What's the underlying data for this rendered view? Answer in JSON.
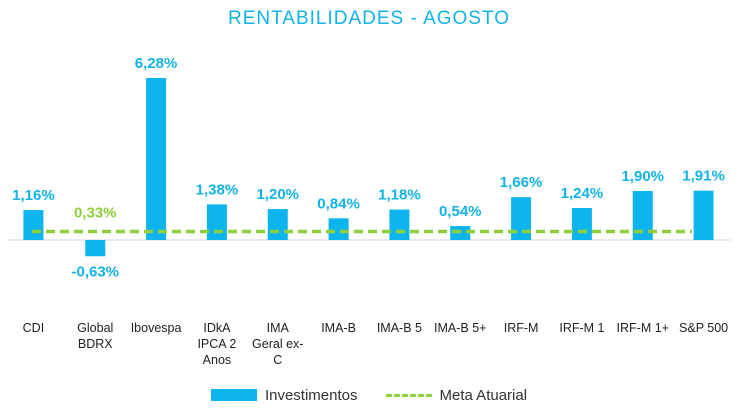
{
  "chart_data": {
    "type": "bar",
    "title": "RENTABILIDADES - AGOSTO",
    "categories": [
      [
        "CDI"
      ],
      [
        "Global",
        "BDRX"
      ],
      [
        "Ibovespa"
      ],
      [
        "IDkA",
        "IPCA 2",
        "Anos"
      ],
      [
        "IMA",
        "Geral ex-",
        "C"
      ],
      [
        "IMA-B"
      ],
      [
        "IMA-B 5"
      ],
      [
        "IMA-B 5+"
      ],
      [
        "IRF-M"
      ],
      [
        "IRF-M 1"
      ],
      [
        "IRF-M 1+"
      ],
      [
        "S&P 500"
      ]
    ],
    "series": [
      {
        "name": "Investimentos",
        "type": "bar",
        "color": "#0eb4ee",
        "values": [
          1.16,
          -0.63,
          6.28,
          1.38,
          1.2,
          0.84,
          1.18,
          0.54,
          1.66,
          1.24,
          1.9,
          1.91
        ],
        "labels": [
          "1,16%",
          "-0,63%",
          "6,28%",
          "1,38%",
          "1,20%",
          "0,84%",
          "1,18%",
          "0,54%",
          "1,66%",
          "1,24%",
          "1,90%",
          "1,91%"
        ]
      },
      {
        "name": "Meta Atuarial",
        "type": "line",
        "style": "dashed",
        "color": "#8fcf3c",
        "value": 0.33,
        "label": "0,33%"
      }
    ],
    "label_color": "#12b3e8",
    "axis_line_color": "#d0d0d0",
    "grid": false,
    "legend_position": "bottom"
  }
}
